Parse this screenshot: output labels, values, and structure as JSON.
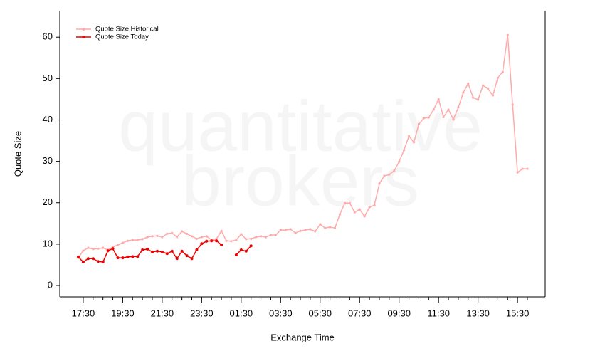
{
  "chart_data": {
    "type": "line",
    "watermark": [
      "quantitative",
      "brokers"
    ],
    "xlabel": "Exchange Time",
    "ylabel": "Quote Size",
    "legend": "upper left",
    "categories": [
      null,
      "17:30",
      null,
      null,
      null,
      null,
      null,
      null,
      null,
      "19:30",
      null,
      null,
      null,
      null,
      null,
      null,
      null,
      "21:30",
      null,
      null,
      null,
      null,
      null,
      null,
      null,
      "23:30",
      null,
      null,
      null,
      null,
      null,
      null,
      null,
      "01:30",
      null,
      null,
      null,
      null,
      null,
      null,
      null,
      "03:30",
      null,
      null,
      null,
      null,
      null,
      null,
      null,
      "05:30",
      null,
      null,
      null,
      null,
      null,
      null,
      null,
      "07:30",
      null,
      null,
      null,
      null,
      null,
      null,
      null,
      "09:30",
      null,
      null,
      null,
      null,
      null,
      null,
      null,
      "11:30",
      null,
      null,
      null,
      null,
      null,
      null,
      null,
      "13:30",
      null,
      null,
      null,
      null,
      null,
      null,
      null,
      "15:30",
      null,
      null
    ],
    "series": [
      {
        "name": "Quote Size Historical",
        "color": "#ffaaaa",
        "values": [
          6.7,
          8.4,
          9.1,
          8.8,
          8.9,
          9.1,
          8.6,
          9.3,
          9.8,
          10.3,
          10.8,
          11.0,
          11.0,
          11.2,
          11.7,
          11.9,
          12.0,
          11.7,
          12.5,
          12.7,
          11.7,
          13.1,
          12.5,
          11.9,
          11.3,
          11.7,
          11.9,
          11.0,
          11.3,
          13.2,
          10.8,
          10.7,
          11.0,
          12.4,
          11.2,
          11.3,
          11.7,
          11.9,
          11.7,
          12.2,
          12.2,
          13.4,
          13.4,
          13.6,
          12.7,
          13.2,
          13.4,
          13.6,
          13.1,
          14.8,
          13.9,
          14.1,
          13.9,
          17.2,
          19.9,
          19.9,
          17.7,
          18.4,
          16.7,
          18.9,
          19.4,
          24.6,
          26.5,
          26.8,
          27.7,
          29.9,
          32.7,
          36.1,
          34.6,
          39.0,
          40.4,
          40.6,
          42.5,
          45.0,
          40.7,
          42.5,
          40.1,
          43.0,
          46.6,
          48.8,
          45.4,
          44.9,
          48.3,
          47.6,
          45.9,
          50.2,
          51.6,
          60.5,
          43.7,
          27.3,
          28.2,
          28.2
        ]
      },
      {
        "name": "Quote Size Today",
        "color": "#ee0000",
        "values": [
          6.9,
          5.7,
          6.5,
          6.5,
          5.8,
          5.7,
          8.4,
          8.9,
          6.7,
          6.7,
          6.9,
          7.0,
          7.0,
          8.6,
          8.8,
          8.1,
          8.3,
          8.1,
          7.7,
          8.3,
          6.5,
          8.3,
          7.2,
          6.5,
          8.6,
          10.1,
          10.7,
          10.8,
          10.8,
          9.8,
          null,
          null,
          7.4,
          8.6,
          8.3,
          9.6,
          null,
          null,
          null,
          null,
          null,
          null,
          null,
          null,
          null,
          null,
          null,
          null,
          null,
          null,
          null,
          null,
          null,
          null,
          null,
          null,
          null,
          null,
          null,
          null,
          null,
          null,
          null,
          null,
          null,
          null,
          null,
          null,
          null,
          null,
          null,
          null,
          null,
          null,
          null,
          null,
          null,
          null,
          null,
          null,
          null,
          null,
          null,
          null,
          null,
          null,
          null,
          null,
          null,
          null,
          null,
          null
        ]
      }
    ],
    "ylim": [
      -2.75,
      66.4
    ],
    "yticks": [
      0,
      10,
      20,
      30,
      40,
      50,
      60
    ],
    "grid": false
  }
}
